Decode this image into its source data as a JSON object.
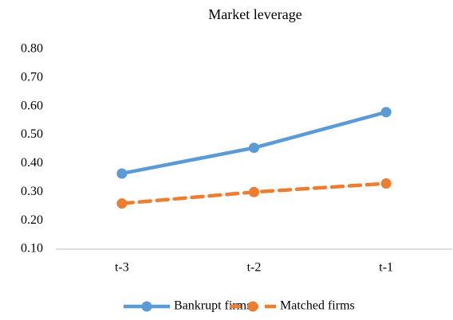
{
  "chart_data": {
    "type": "line",
    "title": "Market leverage",
    "categories": [
      "t-3",
      "t-2",
      "t-1"
    ],
    "series": [
      {
        "name": "Bankrupt firms",
        "color": "#5b9bd5",
        "line_style": "solid",
        "values": [
          0.365,
          0.455,
          0.58
        ]
      },
      {
        "name": "Matched firms",
        "color": "#ed7d31",
        "line_style": "dashed",
        "values": [
          0.26,
          0.3,
          0.33
        ]
      }
    ],
    "ylim": [
      0.1,
      0.8
    ],
    "yticks": [
      {
        "value": 0.1,
        "label": "0.10"
      },
      {
        "value": 0.2,
        "label": "0.20"
      },
      {
        "value": 0.3,
        "label": "0.30"
      },
      {
        "value": 0.4,
        "label": "0.40"
      },
      {
        "value": 0.5,
        "label": "0.50"
      },
      {
        "value": 0.6,
        "label": "0.60"
      },
      {
        "value": 0.7,
        "label": "0.70"
      },
      {
        "value": 0.8,
        "label": "0.80"
      }
    ],
    "grid": false,
    "legend": "bottom"
  }
}
